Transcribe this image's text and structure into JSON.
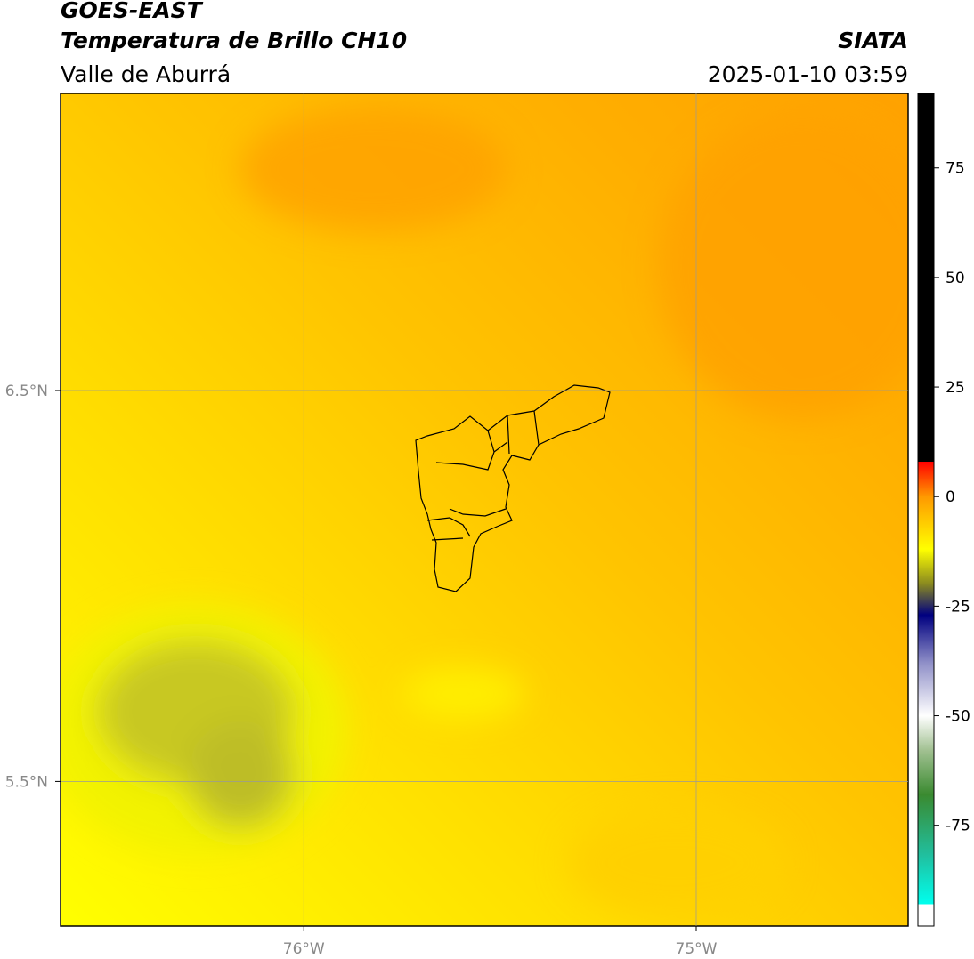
{
  "header": {
    "satellite": "GOES-EAST",
    "product": "Temperatura de Brillo CH10",
    "region": "Valle de Aburrá",
    "agency": "SIATA",
    "datetime": "2025-01-10 03:59"
  },
  "chart_data": {
    "type": "map",
    "xlim": [
      -76.62,
      -74.46
    ],
    "ylim": [
      5.13,
      7.26
    ],
    "xticks": [
      {
        "value": -76,
        "label": "76°W"
      },
      {
        "value": -75,
        "label": "75°W"
      }
    ],
    "yticks": [
      {
        "value": 5.5,
        "label": "5.5°N"
      },
      {
        "value": 6.5,
        "label": "6.5°N"
      }
    ],
    "grid": true,
    "colorbar": {
      "lim": [
        -98,
        92
      ],
      "ticks": [
        -75,
        -50,
        -25,
        0,
        25,
        50,
        75
      ],
      "stops": [
        {
          "value": -98,
          "color": "#ffffff"
        },
        {
          "value": -93,
          "color": "#ffffff"
        },
        {
          "value": -93,
          "color": "#00ffee"
        },
        {
          "value": -82,
          "color": "#20c0a0"
        },
        {
          "value": -68,
          "color": "#3a8a30"
        },
        {
          "value": -58,
          "color": "#a0c090"
        },
        {
          "value": -50,
          "color": "#ffffff"
        },
        {
          "value": -38,
          "color": "#9090c8"
        },
        {
          "value": -27,
          "color": "#000080"
        },
        {
          "value": -20,
          "color": "#888820"
        },
        {
          "value": -12,
          "color": "#ffff00"
        },
        {
          "value": 0,
          "color": "#ff9900"
        },
        {
          "value": 8,
          "color": "#ff0000"
        },
        {
          "value": 8,
          "color": "#000000"
        },
        {
          "value": 92,
          "color": "#000000"
        }
      ]
    }
  }
}
